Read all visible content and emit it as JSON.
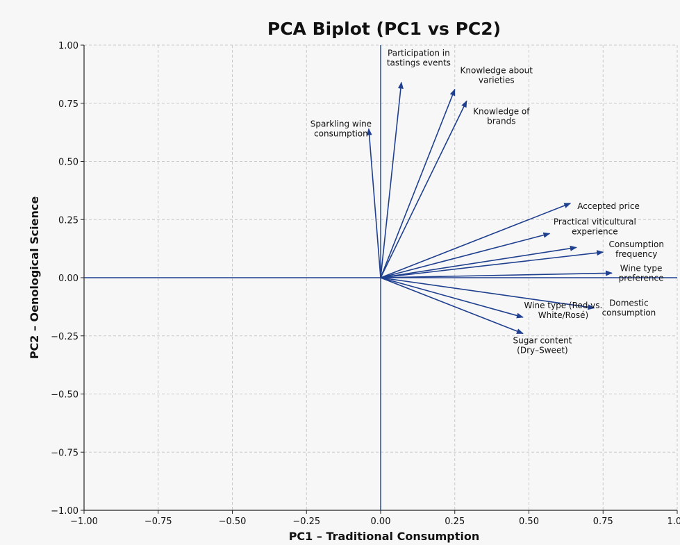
{
  "chart_data": {
    "type": "biplot",
    "title": "PCA Biplot (PC1 vs PC2)",
    "xlabel": "PC1 – Traditional Consumption",
    "ylabel": "PC2 – Oenological Science",
    "xlim": [
      -1.0,
      1.0
    ],
    "ylim": [
      -1.0,
      1.0
    ],
    "xticks": [
      "−1.00",
      "−0.75",
      "−0.50",
      "−0.25",
      "0.00",
      "0.25",
      "0.50",
      "0.75",
      "1.00"
    ],
    "yticks": [
      "1.00",
      "0.75",
      "0.50",
      "0.25",
      "0.00",
      "−0.25",
      "−0.50",
      "−0.75",
      "−1.00"
    ],
    "grid": true,
    "color": "#1f3f8f",
    "vectors": [
      {
        "label": [
          "Participation in",
          "tastings events"
        ],
        "x": 0.07,
        "y": 0.84
      },
      {
        "label": [
          "Knowledge about",
          "varieties"
        ],
        "x": 0.25,
        "y": 0.81
      },
      {
        "label": [
          "Knowledge of",
          "brands"
        ],
        "x": 0.29,
        "y": 0.76
      },
      {
        "label": [
          "Sparkling wine",
          "consumption"
        ],
        "x": -0.04,
        "y": 0.64
      },
      {
        "label": [
          "Accepted price"
        ],
        "x": 0.64,
        "y": 0.32
      },
      {
        "label": [
          "Practical viticultural",
          "experience"
        ],
        "x": 0.57,
        "y": 0.19
      },
      {
        "label": [
          "Consumption",
          "frequency"
        ],
        "x": 0.75,
        "y": 0.11
      },
      {
        "label": [],
        "x": 0.66,
        "y": 0.13
      },
      {
        "label": [
          "Wine type",
          "preference"
        ],
        "x": 0.78,
        "y": 0.02
      },
      {
        "label": [
          "Domestic",
          "consumption"
        ],
        "x": 0.72,
        "y": -0.13
      },
      {
        "label": [
          "Wine type (Red vs.",
          "White/Rosé)"
        ],
        "x": 0.48,
        "y": -0.17
      },
      {
        "label": [
          "Sugar content",
          "(Dry–Sweet)"
        ],
        "x": 0.48,
        "y": -0.24
      }
    ]
  }
}
